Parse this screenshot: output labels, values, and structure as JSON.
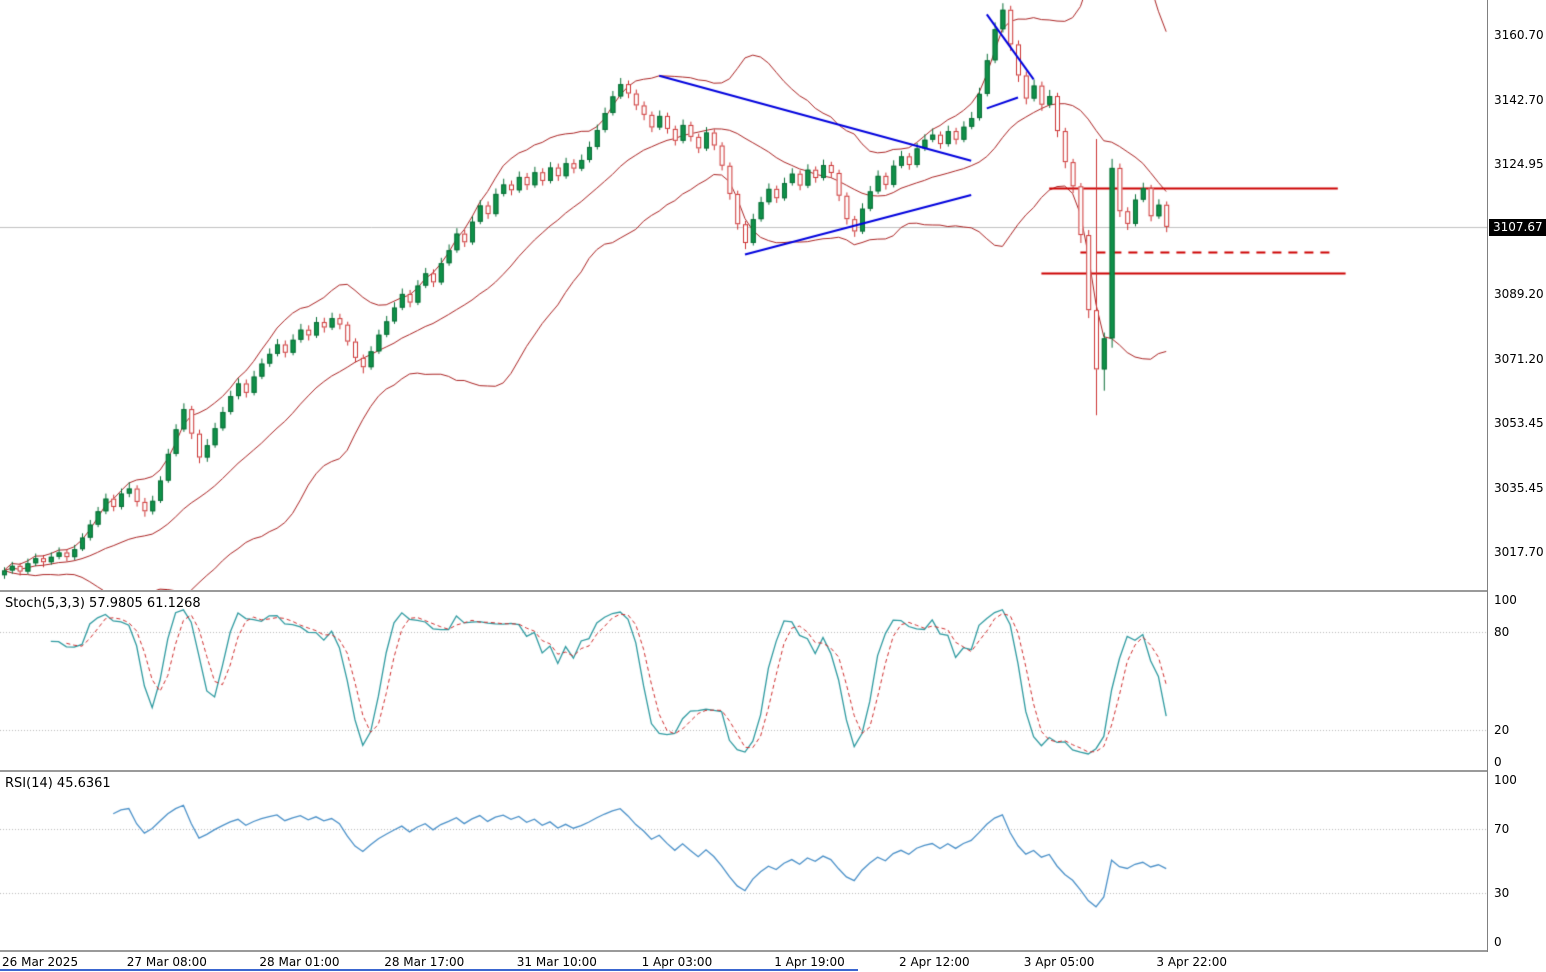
{
  "indicators": {
    "stoch": {
      "label": "Stoch(5,3,3) 57.9805 61.1268",
      "axis_labels": [
        "100",
        "80",
        "20",
        "0"
      ],
      "axis_values": [
        100,
        80,
        20,
        0
      ],
      "dotted_levels": [
        80,
        20
      ],
      "k_value": 57.9805,
      "d_value": 61.1268
    },
    "rsi": {
      "label": "RSI(14) 45.6361",
      "axis_labels": [
        "100",
        "70",
        "30",
        "0"
      ],
      "axis_values": [
        100,
        70,
        30,
        0
      ],
      "dotted_levels": [
        70,
        30
      ],
      "value": 45.6361
    }
  },
  "colors": {
    "background": "#ffffff",
    "candle_up_fill": "#0f9149",
    "candle_up_stroke": "#0a6e37",
    "candle_down_stroke": "#cc3333",
    "candle_down_fill": "#ffffff",
    "band_line": "#aa2222",
    "trend_line": "#0000dd",
    "horizontal_line": "#cc0000",
    "current_price_line": "#c0c0c0",
    "stoch_k": "#2e9aa0",
    "stoch_d": "#d03030",
    "rsi_line": "#4a90c8",
    "level_dotted": "#b8b8b8",
    "price_tag_bg": "#000000",
    "price_tag_text": "#ffffff"
  },
  "chart_data": {
    "type": "candlestick",
    "title": "",
    "timeframe": "H1",
    "ylim": [
      3007.1,
      3170.5
    ],
    "current_price": 3107.67,
    "current_price_label": "3107.67",
    "price_axis": [
      "3160.70",
      "3142.70",
      "3124.95",
      "3089.20",
      "3071.20",
      "3053.45",
      "3035.45",
      "3017.70"
    ],
    "time_ticks": [
      {
        "i": 0,
        "label": "26 Mar 2025"
      },
      {
        "i": 16,
        "label": "27 Mar 08:00"
      },
      {
        "i": 33,
        "label": "28 Mar 01:00"
      },
      {
        "i": 49,
        "label": "28 Mar 17:00"
      },
      {
        "i": 66,
        "label": "31 Mar 10:00"
      },
      {
        "i": 82,
        "label": "1 Apr 03:00"
      },
      {
        "i": 99,
        "label": "1 Apr 19:00"
      },
      {
        "i": 115,
        "label": "2 Apr 12:00"
      },
      {
        "i": 131,
        "label": "3 Apr 05:00"
      },
      {
        "i": 148,
        "label": "3 Apr 22:00"
      }
    ],
    "bollinger": {
      "period": 20,
      "deviation": 2
    },
    "trendlines": [
      {
        "i1": 84,
        "p1": 3149.5,
        "i2": 124,
        "p2": 3126.0
      },
      {
        "i1": 95,
        "p1": 3100.0,
        "i2": 124,
        "p2": 3116.5
      },
      {
        "i1": 126,
        "p1": 3166.5,
        "i2": 132,
        "p2": 3148.5
      },
      {
        "i1": 126,
        "p1": 3140.5,
        "i2": 130,
        "p2": 3143.5
      }
    ],
    "hlines": [
      {
        "price": 3118.4,
        "i1": 134,
        "i2": 171,
        "dashed": false,
        "width": 2
      },
      {
        "price": 3100.8,
        "i1": 138,
        "i2": 170,
        "dashed": true,
        "width": 2
      },
      {
        "price": 3094.9,
        "i1": 133,
        "i2": 172,
        "dashed": false,
        "width": 2
      }
    ],
    "candles": [
      [
        3011.2,
        3013.4,
        3010.2,
        3012.5
      ],
      [
        3012.5,
        3014.9,
        3011.6,
        3013.8
      ],
      [
        3013.8,
        3014.6,
        3011.1,
        3012.2
      ],
      [
        3012.2,
        3015.8,
        3011.5,
        3014.5
      ],
      [
        3014.5,
        3017.2,
        3013.7,
        3015.9
      ],
      [
        3015.9,
        3016.8,
        3013.4,
        3014.8
      ],
      [
        3014.8,
        3017.5,
        3014.1,
        3016.3
      ],
      [
        3016.3,
        3018.9,
        3015.6,
        3017.5
      ],
      [
        3017.5,
        3018.4,
        3015.0,
        3016.2
      ],
      [
        3016.2,
        3019.6,
        3015.4,
        3018.4
      ],
      [
        3018.4,
        3022.8,
        3017.9,
        3021.6
      ],
      [
        3021.6,
        3026.5,
        3020.8,
        3025.2
      ],
      [
        3025.2,
        3030.1,
        3024.5,
        3028.9
      ],
      [
        3028.9,
        3033.8,
        3028.1,
        3032.4
      ],
      [
        3032.4,
        3033.5,
        3028.9,
        3030.1
      ],
      [
        3030.1,
        3035.2,
        3029.4,
        3033.8
      ],
      [
        3033.8,
        3036.9,
        3032.8,
        3035.2
      ],
      [
        3035.2,
        3036.1,
        3030.2,
        3031.5
      ],
      [
        3031.5,
        3032.6,
        3027.4,
        3028.9
      ],
      [
        3028.9,
        3033.2,
        3028.0,
        3031.8
      ],
      [
        3031.8,
        3038.6,
        3031.2,
        3037.4
      ],
      [
        3037.4,
        3046.2,
        3036.8,
        3044.8
      ],
      [
        3044.8,
        3053.0,
        3044.1,
        3051.6
      ],
      [
        3051.6,
        3058.8,
        3050.9,
        3057.2
      ],
      [
        3057.2,
        3058.1,
        3048.9,
        3050.4
      ],
      [
        3050.4,
        3051.5,
        3042.2,
        3043.8
      ],
      [
        3043.8,
        3048.9,
        3042.6,
        3047.2
      ],
      [
        3047.2,
        3053.4,
        3046.5,
        3051.9
      ],
      [
        3051.9,
        3057.8,
        3051.2,
        3056.4
      ],
      [
        3056.4,
        3062.3,
        3055.7,
        3060.8
      ],
      [
        3060.8,
        3065.7,
        3059.9,
        3064.3
      ],
      [
        3064.3,
        3065.4,
        3060.4,
        3061.7
      ],
      [
        3061.7,
        3067.8,
        3061.0,
        3066.2
      ],
      [
        3066.2,
        3071.2,
        3065.5,
        3069.8
      ],
      [
        3069.8,
        3074.0,
        3068.9,
        3072.5
      ],
      [
        3072.5,
        3076.6,
        3071.8,
        3075.1
      ],
      [
        3075.1,
        3076.2,
        3071.5,
        3072.8
      ],
      [
        3072.8,
        3077.9,
        3072.1,
        3076.4
      ],
      [
        3076.4,
        3080.8,
        3075.6,
        3079.2
      ],
      [
        3079.2,
        3080.4,
        3076.2,
        3077.6
      ],
      [
        3077.6,
        3082.7,
        3076.9,
        3081.3
      ],
      [
        3081.3,
        3082.5,
        3078.4,
        3079.8
      ],
      [
        3079.8,
        3083.9,
        3079.1,
        3082.4
      ],
      [
        3082.4,
        3083.6,
        3079.3,
        3080.6
      ],
      [
        3080.6,
        3081.4,
        3074.8,
        3075.9
      ],
      [
        3075.9,
        3076.8,
        3070.2,
        3071.4
      ],
      [
        3071.4,
        3072.3,
        3067.1,
        3068.8
      ],
      [
        3068.8,
        3074.6,
        3068.1,
        3073.2
      ],
      [
        3073.2,
        3079.2,
        3072.5,
        3077.8
      ],
      [
        3077.8,
        3083.0,
        3077.1,
        3081.5
      ],
      [
        3081.5,
        3086.8,
        3080.8,
        3085.3
      ],
      [
        3085.3,
        3090.6,
        3084.6,
        3089.1
      ],
      [
        3089.1,
        3090.2,
        3085.4,
        3086.7
      ],
      [
        3086.7,
        3092.9,
        3086.0,
        3091.4
      ],
      [
        3091.4,
        3096.3,
        3090.7,
        3094.8
      ],
      [
        3094.8,
        3095.9,
        3091.0,
        3092.3
      ],
      [
        3092.3,
        3099.1,
        3091.6,
        3097.6
      ],
      [
        3097.6,
        3102.8,
        3096.9,
        3101.2
      ],
      [
        3101.2,
        3107.3,
        3100.5,
        3105.8
      ],
      [
        3105.8,
        3106.9,
        3102.1,
        3103.4
      ],
      [
        3103.4,
        3110.6,
        3102.7,
        3109.1
      ],
      [
        3109.1,
        3115.1,
        3108.4,
        3113.6
      ],
      [
        3113.6,
        3114.7,
        3109.9,
        3111.2
      ],
      [
        3111.2,
        3118.3,
        3110.5,
        3116.8
      ],
      [
        3116.8,
        3121.0,
        3116.1,
        3119.4
      ],
      [
        3119.4,
        3120.5,
        3116.4,
        3117.8
      ],
      [
        3117.8,
        3123.0,
        3117.1,
        3121.5
      ],
      [
        3121.5,
        3122.6,
        3117.9,
        3119.2
      ],
      [
        3119.2,
        3124.3,
        3118.5,
        3122.8
      ],
      [
        3122.8,
        3123.9,
        3119.1,
        3120.4
      ],
      [
        3120.4,
        3125.6,
        3119.7,
        3124.1
      ],
      [
        3124.1,
        3125.2,
        3120.4,
        3121.7
      ],
      [
        3121.7,
        3126.8,
        3121.0,
        3125.3
      ],
      [
        3125.3,
        3126.4,
        3122.5,
        3123.8
      ],
      [
        3123.8,
        3127.7,
        3123.1,
        3126.2
      ],
      [
        3126.2,
        3131.3,
        3125.5,
        3129.8
      ],
      [
        3129.8,
        3136.0,
        3129.1,
        3134.5
      ],
      [
        3134.5,
        3140.7,
        3133.8,
        3139.2
      ],
      [
        3139.2,
        3145.3,
        3138.5,
        3143.8
      ],
      [
        3143.8,
        3148.9,
        3143.1,
        3147.2
      ],
      [
        3147.2,
        3148.2,
        3143.3,
        3144.6
      ],
      [
        3144.6,
        3145.7,
        3140.0,
        3141.3
      ],
      [
        3141.3,
        3142.4,
        3137.2,
        3138.7
      ],
      [
        3138.7,
        3139.6,
        3133.9,
        3135.2
      ],
      [
        3135.2,
        3139.9,
        3134.5,
        3138.4
      ],
      [
        3138.4,
        3139.3,
        3133.5,
        3134.8
      ],
      [
        3134.8,
        3135.7,
        3130.2,
        3131.5
      ],
      [
        3131.5,
        3137.4,
        3130.8,
        3135.9
      ],
      [
        3135.9,
        3136.8,
        3131.3,
        3132.6
      ],
      [
        3132.6,
        3133.5,
        3128.1,
        3129.4
      ],
      [
        3129.4,
        3135.3,
        3128.7,
        3133.8
      ],
      [
        3133.8,
        3134.7,
        3128.9,
        3130.2
      ],
      [
        3130.2,
        3131.1,
        3123.3,
        3124.6
      ],
      [
        3124.6,
        3125.5,
        3115.2,
        3116.8
      ],
      [
        3116.8,
        3117.7,
        3106.9,
        3108.4
      ],
      [
        3108.4,
        3109.3,
        3101.5,
        3103.2
      ],
      [
        3103.2,
        3111.3,
        3102.5,
        3109.8
      ],
      [
        3109.8,
        3116.0,
        3109.1,
        3114.5
      ],
      [
        3114.5,
        3119.7,
        3113.8,
        3118.2
      ],
      [
        3118.2,
        3119.1,
        3114.3,
        3115.6
      ],
      [
        3115.6,
        3121.3,
        3114.9,
        3119.8
      ],
      [
        3119.8,
        3123.9,
        3119.1,
        3122.4
      ],
      [
        3122.4,
        3123.3,
        3117.8,
        3119.1
      ],
      [
        3119.1,
        3125.0,
        3118.4,
        3123.5
      ],
      [
        3123.5,
        3124.4,
        3119.9,
        3121.2
      ],
      [
        3121.2,
        3126.3,
        3120.5,
        3124.8
      ],
      [
        3124.8,
        3125.7,
        3121.3,
        3122.6
      ],
      [
        3122.6,
        3123.5,
        3114.8,
        3116.3
      ],
      [
        3116.3,
        3117.2,
        3108.3,
        3109.8
      ],
      [
        3109.8,
        3110.7,
        3104.9,
        3106.4
      ],
      [
        3106.4,
        3114.2,
        3105.7,
        3112.7
      ],
      [
        3112.7,
        3119.0,
        3112.0,
        3117.5
      ],
      [
        3117.5,
        3123.3,
        3116.8,
        3121.8
      ],
      [
        3121.8,
        3122.7,
        3118.0,
        3119.3
      ],
      [
        3119.3,
        3126.1,
        3118.6,
        3124.6
      ],
      [
        3124.6,
        3128.7,
        3123.9,
        3127.2
      ],
      [
        3127.2,
        3128.1,
        3123.5,
        3124.8
      ],
      [
        3124.8,
        3130.9,
        3124.1,
        3129.4
      ],
      [
        3129.4,
        3133.3,
        3128.7,
        3131.8
      ],
      [
        3131.8,
        3134.9,
        3131.1,
        3133.2
      ],
      [
        3133.2,
        3134.1,
        3129.3,
        3130.6
      ],
      [
        3130.6,
        3135.7,
        3129.9,
        3134.2
      ],
      [
        3134.2,
        3135.1,
        3130.5,
        3131.8
      ],
      [
        3131.8,
        3136.9,
        3131.1,
        3135.4
      ],
      [
        3135.4,
        3139.5,
        3134.7,
        3137.8
      ],
      [
        3137.8,
        3146.2,
        3137.1,
        3144.5
      ],
      [
        3144.5,
        3155.6,
        3143.8,
        3153.8
      ],
      [
        3153.8,
        3164.3,
        3153.0,
        3162.4
      ],
      [
        3162.4,
        3169.6,
        3161.5,
        3167.8
      ],
      [
        3167.8,
        3168.9,
        3156.4,
        3158.2
      ],
      [
        3158.2,
        3159.3,
        3147.8,
        3149.6
      ],
      [
        3149.6,
        3150.7,
        3141.6,
        3143.2
      ],
      [
        3143.2,
        3148.5,
        3142.4,
        3146.8
      ],
      [
        3146.8,
        3147.9,
        3139.8,
        3141.5
      ],
      [
        3141.5,
        3145.6,
        3140.6,
        3143.9
      ],
      [
        3143.9,
        3144.8,
        3132.5,
        3134.2
      ],
      [
        3134.2,
        3135.1,
        3123.9,
        3125.6
      ],
      [
        3125.6,
        3126.5,
        3117.0,
        3118.9
      ],
      [
        3118.9,
        3119.8,
        3103.2,
        3105.4
      ],
      [
        3105.4,
        3106.8,
        3082.4,
        3084.6
      ],
      [
        3084.6,
        3132.0,
        3055.5,
        3068.2
      ],
      [
        3068.2,
        3078.4,
        3062.3,
        3076.8
      ],
      [
        3076.8,
        3126.5,
        3074.2,
        3124.0
      ],
      [
        3124.0,
        3125.2,
        3110.4,
        3112.0
      ],
      [
        3112.0,
        3113.1,
        3106.8,
        3108.5
      ],
      [
        3108.5,
        3116.7,
        3107.8,
        3115.2
      ],
      [
        3115.2,
        3119.9,
        3114.5,
        3118.4
      ],
      [
        3118.4,
        3119.3,
        3109.2,
        3110.6
      ],
      [
        3110.6,
        3115.3,
        3109.9,
        3113.8
      ],
      [
        3113.8,
        3114.7,
        3106.2,
        3107.67
      ]
    ],
    "oscillators": [
      {
        "name": "stochastic",
        "params": [
          5,
          3,
          3
        ],
        "range": [
          0,
          100
        ],
        "levels": [
          80,
          20
        ]
      },
      {
        "name": "rsi",
        "period": 14,
        "range": [
          0,
          100
        ],
        "levels": [
          70,
          30
        ]
      }
    ]
  }
}
